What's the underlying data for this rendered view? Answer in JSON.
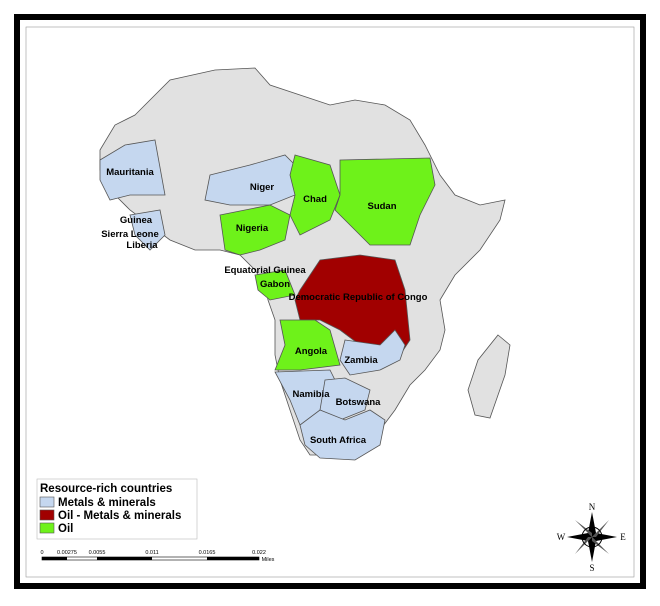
{
  "countries": [
    "Mauritania",
    "Niger",
    "Chad",
    "Sudan",
    "Nigeria",
    "Guinea",
    "Sierra Leone",
    "Liberia",
    "Equatorial Guinea",
    "Gabon",
    "Democratic Republic of Congo",
    "Angola",
    "Zambia",
    "Namibia",
    "Botswana",
    "South Africa"
  ],
  "legend": {
    "title": "Resource-rich countries",
    "items": [
      {
        "name": "Metals & minerals",
        "color": "#c5d7ef"
      },
      {
        "name": "Oil - Metals & minerals",
        "color": "#a10000"
      },
      {
        "name": "Oil",
        "color": "#6ef21a"
      }
    ]
  },
  "scale_bar": {
    "labels": [
      "0",
      "0.00275",
      "0.0055",
      "0.011",
      "0.0165",
      "0.022"
    ],
    "unit": "Miles"
  },
  "compass": {
    "north": "N",
    "south": "S",
    "east": "E",
    "west": "W"
  }
}
